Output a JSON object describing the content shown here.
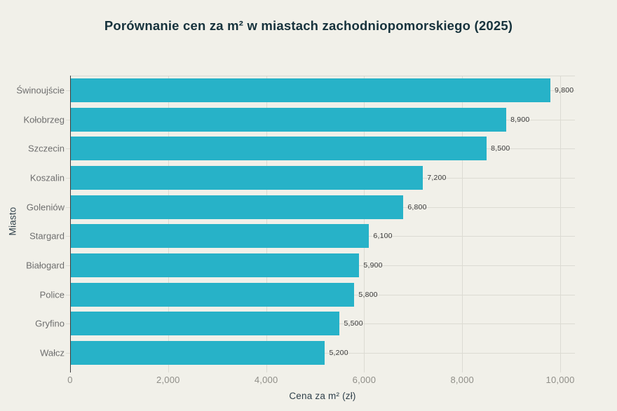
{
  "title": "Porównanie cen za m² w miastach zachodniopomorskiego (2025)",
  "chart_data": {
    "type": "bar",
    "orientation": "horizontal",
    "title": "Porównanie cen za m² w miastach zachodniopomorskiego (2025)",
    "xlabel": "Cena za m² (zł)",
    "ylabel": "Miasto",
    "categories": [
      "Świnoujście",
      "Kołobrzeg",
      "Szczecin",
      "Koszalin",
      "Goleniów",
      "Stargard",
      "Białogard",
      "Police",
      "Gryfino",
      "Wałcz"
    ],
    "values": [
      9800,
      8900,
      8500,
      7200,
      6800,
      6100,
      5900,
      5800,
      5500,
      5200
    ],
    "value_labels": [
      "9,800",
      "8,900",
      "8,500",
      "7,200",
      "6,800",
      "6,100",
      "5,900",
      "5,800",
      "5,500",
      "5,200"
    ],
    "x_ticks": [
      0,
      2000,
      4000,
      6000,
      8000,
      10000
    ],
    "x_tick_labels": [
      "0",
      "2,000",
      "4,000",
      "6,000",
      "8,000",
      "10,000"
    ],
    "xlim": [
      0,
      10300
    ],
    "grid": true,
    "legend": false,
    "bar_color": "#27b2c8"
  },
  "colors": {
    "background": "#f1f0e9",
    "bar": "#27b2c8",
    "title": "#16323c",
    "axis_title": "#2f404a",
    "category_label": "#6e6e6e",
    "tick_label": "#8f8e88",
    "value_label": "#3a3a3a",
    "gridline": "#dcdbd3",
    "axis_line": "#3b3b3b"
  }
}
